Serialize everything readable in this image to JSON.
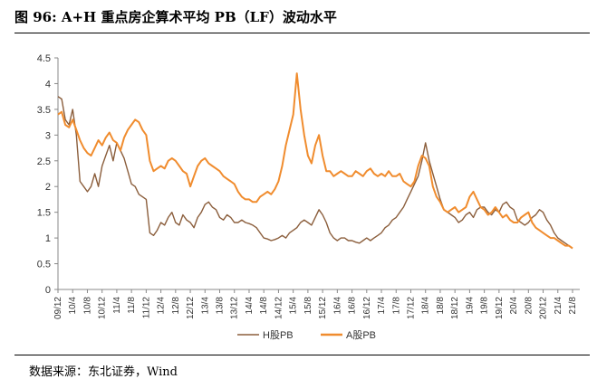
{
  "title": "图 96:  A+H 重点房企算术平均 PB（LF）波动水平",
  "source": "数据来源：东北证券，Wind",
  "chart_data": {
    "type": "line",
    "xlabel": "",
    "ylabel": "",
    "ylim": [
      0,
      4.5
    ],
    "yticks": [
      "0",
      "0.5",
      "1",
      "1.5",
      "2",
      "2.5",
      "3",
      "3.5",
      "4",
      "4.5"
    ],
    "x_ticks": [
      "09/12",
      "10/4",
      "10/8",
      "10/12",
      "11/4",
      "11/8",
      "11/12",
      "12/4",
      "12/8",
      "12/12",
      "13/4",
      "13/8",
      "13/12",
      "14/4",
      "14/8",
      "14/12",
      "15/4",
      "15/8",
      "15/12",
      "16/4",
      "16/8",
      "16/12",
      "17/4",
      "17/8",
      "17/12",
      "18/4",
      "18/8",
      "18/12",
      "19/4",
      "19/8",
      "19/12",
      "20/4",
      "20/8",
      "20/12",
      "21/4",
      "21/8"
    ],
    "grid": false,
    "legend": "bottom-center",
    "series": [
      {
        "name": "H股PB",
        "color": "#8B5E3C",
        "points": [
          [
            0,
            3.75
          ],
          [
            0.5,
            3.7
          ],
          [
            1,
            3.3
          ],
          [
            1.5,
            3.2
          ],
          [
            2,
            3.5
          ],
          [
            2.5,
            3.0
          ],
          [
            3,
            2.1
          ],
          [
            3.5,
            2.0
          ],
          [
            4,
            1.9
          ],
          [
            4.5,
            2.0
          ],
          [
            5,
            2.25
          ],
          [
            5.5,
            2.0
          ],
          [
            6,
            2.4
          ],
          [
            6.5,
            2.6
          ],
          [
            7,
            2.8
          ],
          [
            7.5,
            2.5
          ],
          [
            8,
            2.85
          ],
          [
            8.5,
            2.7
          ],
          [
            9,
            2.55
          ],
          [
            9.5,
            2.3
          ],
          [
            10,
            2.05
          ],
          [
            10.5,
            2.0
          ],
          [
            11,
            1.85
          ],
          [
            11.5,
            1.8
          ],
          [
            12,
            1.75
          ],
          [
            12.5,
            1.1
          ],
          [
            13,
            1.05
          ],
          [
            13.5,
            1.15
          ],
          [
            14,
            1.3
          ],
          [
            14.5,
            1.25
          ],
          [
            15,
            1.4
          ],
          [
            15.5,
            1.5
          ],
          [
            16,
            1.3
          ],
          [
            16.5,
            1.25
          ],
          [
            17,
            1.45
          ],
          [
            17.5,
            1.35
          ],
          [
            18,
            1.3
          ],
          [
            18.5,
            1.2
          ],
          [
            19,
            1.4
          ],
          [
            19.5,
            1.5
          ],
          [
            20,
            1.65
          ],
          [
            20.5,
            1.7
          ],
          [
            21,
            1.6
          ],
          [
            21.5,
            1.55
          ],
          [
            22,
            1.4
          ],
          [
            22.5,
            1.35
          ],
          [
            23,
            1.45
          ],
          [
            23.5,
            1.4
          ],
          [
            24,
            1.3
          ],
          [
            24.5,
            1.3
          ],
          [
            25,
            1.35
          ],
          [
            25.5,
            1.3
          ],
          [
            26,
            1.28
          ],
          [
            26.5,
            1.25
          ],
          [
            27,
            1.2
          ],
          [
            27.5,
            1.1
          ],
          [
            28,
            1.0
          ],
          [
            28.5,
            0.98
          ],
          [
            29,
            0.95
          ],
          [
            29.5,
            0.97
          ],
          [
            30,
            1.0
          ],
          [
            30.5,
            1.05
          ],
          [
            31,
            1.0
          ],
          [
            31.5,
            1.1
          ],
          [
            32,
            1.15
          ],
          [
            32.5,
            1.2
          ],
          [
            33,
            1.3
          ],
          [
            33.5,
            1.35
          ],
          [
            34,
            1.3
          ],
          [
            34.5,
            1.25
          ],
          [
            35,
            1.4
          ],
          [
            35.5,
            1.55
          ],
          [
            36,
            1.45
          ],
          [
            36.5,
            1.3
          ],
          [
            37,
            1.1
          ],
          [
            37.5,
            1.0
          ],
          [
            38,
            0.95
          ],
          [
            38.5,
            1.0
          ],
          [
            39,
            1.0
          ],
          [
            39.5,
            0.95
          ],
          [
            40,
            0.95
          ],
          [
            40.5,
            0.92
          ],
          [
            41,
            0.9
          ],
          [
            41.5,
            0.95
          ],
          [
            42,
            1.0
          ],
          [
            42.5,
            0.95
          ],
          [
            43,
            1.0
          ],
          [
            43.5,
            1.05
          ],
          [
            44,
            1.1
          ],
          [
            44.5,
            1.2
          ],
          [
            45,
            1.25
          ],
          [
            45.5,
            1.35
          ],
          [
            46,
            1.4
          ],
          [
            46.5,
            1.5
          ],
          [
            47,
            1.6
          ],
          [
            47.5,
            1.75
          ],
          [
            48,
            1.9
          ],
          [
            48.5,
            2.05
          ],
          [
            49,
            2.2
          ],
          [
            49.5,
            2.5
          ],
          [
            50,
            2.85
          ],
          [
            50.5,
            2.5
          ],
          [
            51,
            2.25
          ],
          [
            51.5,
            2.0
          ],
          [
            52,
            1.75
          ],
          [
            52.5,
            1.55
          ],
          [
            53,
            1.5
          ],
          [
            53.5,
            1.45
          ],
          [
            54,
            1.4
          ],
          [
            54.5,
            1.3
          ],
          [
            55,
            1.35
          ],
          [
            55.5,
            1.45
          ],
          [
            56,
            1.5
          ],
          [
            56.5,
            1.4
          ],
          [
            57,
            1.55
          ],
          [
            57.5,
            1.6
          ],
          [
            58,
            1.6
          ],
          [
            58.5,
            1.5
          ],
          [
            59,
            1.45
          ],
          [
            59.5,
            1.55
          ],
          [
            60,
            1.5
          ],
          [
            60.5,
            1.65
          ],
          [
            61,
            1.7
          ],
          [
            61.5,
            1.6
          ],
          [
            62,
            1.55
          ],
          [
            62.5,
            1.35
          ],
          [
            63,
            1.3
          ],
          [
            63.5,
            1.25
          ],
          [
            64,
            1.3
          ],
          [
            64.5,
            1.4
          ],
          [
            65,
            1.45
          ],
          [
            65.5,
            1.55
          ],
          [
            66,
            1.5
          ],
          [
            66.5,
            1.35
          ],
          [
            67,
            1.25
          ],
          [
            67.5,
            1.1
          ],
          [
            68,
            1.0
          ],
          [
            68.5,
            0.95
          ],
          [
            69,
            0.9
          ],
          [
            69.5,
            0.85
          ],
          [
            70,
            0.8
          ]
        ]
      },
      {
        "name": "A股PB",
        "color": "#F08C2E",
        "points": [
          [
            0,
            3.4
          ],
          [
            0.5,
            3.45
          ],
          [
            1,
            3.2
          ],
          [
            1.5,
            3.15
          ],
          [
            2,
            3.3
          ],
          [
            2.5,
            3.1
          ],
          [
            3,
            2.9
          ],
          [
            3.5,
            2.75
          ],
          [
            4,
            2.65
          ],
          [
            4.5,
            2.6
          ],
          [
            5,
            2.75
          ],
          [
            5.5,
            2.9
          ],
          [
            6,
            2.8
          ],
          [
            6.5,
            2.95
          ],
          [
            7,
            3.05
          ],
          [
            7.5,
            2.9
          ],
          [
            8,
            2.85
          ],
          [
            8.5,
            2.7
          ],
          [
            9,
            2.95
          ],
          [
            9.5,
            3.1
          ],
          [
            10,
            3.2
          ],
          [
            10.5,
            3.3
          ],
          [
            11,
            3.25
          ],
          [
            11.5,
            3.1
          ],
          [
            12,
            3.0
          ],
          [
            12.5,
            2.5
          ],
          [
            13,
            2.3
          ],
          [
            13.5,
            2.35
          ],
          [
            14,
            2.4
          ],
          [
            14.5,
            2.35
          ],
          [
            15,
            2.5
          ],
          [
            15.5,
            2.55
          ],
          [
            16,
            2.5
          ],
          [
            16.5,
            2.4
          ],
          [
            17,
            2.3
          ],
          [
            17.5,
            2.25
          ],
          [
            18,
            2.0
          ],
          [
            18.5,
            2.2
          ],
          [
            19,
            2.4
          ],
          [
            19.5,
            2.5
          ],
          [
            20,
            2.55
          ],
          [
            20.5,
            2.45
          ],
          [
            21,
            2.4
          ],
          [
            21.5,
            2.35
          ],
          [
            22,
            2.3
          ],
          [
            22.5,
            2.2
          ],
          [
            23,
            2.15
          ],
          [
            23.5,
            2.1
          ],
          [
            24,
            2.05
          ],
          [
            24.5,
            1.9
          ],
          [
            25,
            1.8
          ],
          [
            25.5,
            1.75
          ],
          [
            26,
            1.75
          ],
          [
            26.5,
            1.7
          ],
          [
            27,
            1.7
          ],
          [
            27.5,
            1.8
          ],
          [
            28,
            1.85
          ],
          [
            28.5,
            1.9
          ],
          [
            29,
            1.85
          ],
          [
            29.5,
            1.95
          ],
          [
            30,
            2.1
          ],
          [
            30.5,
            2.4
          ],
          [
            31,
            2.8
          ],
          [
            31.5,
            3.1
          ],
          [
            32,
            3.4
          ],
          [
            32.5,
            4.2
          ],
          [
            33,
            3.5
          ],
          [
            33.5,
            3.0
          ],
          [
            34,
            2.6
          ],
          [
            34.5,
            2.45
          ],
          [
            35,
            2.8
          ],
          [
            35.5,
            3.0
          ],
          [
            36,
            2.6
          ],
          [
            36.5,
            2.3
          ],
          [
            37,
            2.3
          ],
          [
            37.5,
            2.2
          ],
          [
            38,
            2.25
          ],
          [
            38.5,
            2.3
          ],
          [
            39,
            2.25
          ],
          [
            39.5,
            2.2
          ],
          [
            40,
            2.2
          ],
          [
            40.5,
            2.3
          ],
          [
            41,
            2.25
          ],
          [
            41.5,
            2.2
          ],
          [
            42,
            2.3
          ],
          [
            42.5,
            2.35
          ],
          [
            43,
            2.25
          ],
          [
            43.5,
            2.2
          ],
          [
            44,
            2.25
          ],
          [
            44.5,
            2.2
          ],
          [
            45,
            2.3
          ],
          [
            45.5,
            2.2
          ],
          [
            46,
            2.2
          ],
          [
            46.5,
            2.25
          ],
          [
            47,
            2.1
          ],
          [
            47.5,
            2.05
          ],
          [
            48,
            2.0
          ],
          [
            48.5,
            2.1
          ],
          [
            49,
            2.4
          ],
          [
            49.5,
            2.6
          ],
          [
            50,
            2.55
          ],
          [
            50.5,
            2.4
          ],
          [
            51,
            2.0
          ],
          [
            51.5,
            1.8
          ],
          [
            52,
            1.7
          ],
          [
            52.5,
            1.55
          ],
          [
            53,
            1.5
          ],
          [
            53.5,
            1.55
          ],
          [
            54,
            1.6
          ],
          [
            54.5,
            1.5
          ],
          [
            55,
            1.55
          ],
          [
            55.5,
            1.6
          ],
          [
            56,
            1.8
          ],
          [
            56.5,
            1.9
          ],
          [
            57,
            1.75
          ],
          [
            57.5,
            1.6
          ],
          [
            58,
            1.55
          ],
          [
            58.5,
            1.45
          ],
          [
            59,
            1.5
          ],
          [
            59.5,
            1.6
          ],
          [
            60,
            1.5
          ],
          [
            60.5,
            1.4
          ],
          [
            61,
            1.45
          ],
          [
            61.5,
            1.35
          ],
          [
            62,
            1.3
          ],
          [
            62.5,
            1.3
          ],
          [
            63,
            1.4
          ],
          [
            63.5,
            1.45
          ],
          [
            64,
            1.5
          ],
          [
            64.5,
            1.3
          ],
          [
            65,
            1.2
          ],
          [
            65.5,
            1.15
          ],
          [
            66,
            1.1
          ],
          [
            66.5,
            1.05
          ],
          [
            67,
            1.0
          ],
          [
            67.5,
            1.0
          ],
          [
            68,
            0.95
          ],
          [
            68.5,
            0.9
          ],
          [
            69,
            0.85
          ],
          [
            69.5,
            0.85
          ],
          [
            70,
            0.8
          ]
        ]
      }
    ]
  }
}
